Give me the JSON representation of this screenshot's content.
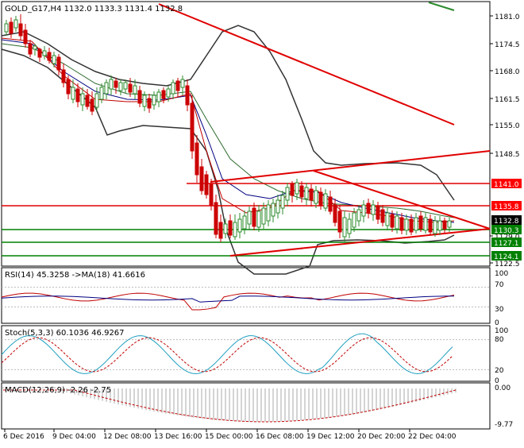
{
  "main": {
    "title": "GOLD_G17,H4 1132.0 1133.3 1131.4 1132.8",
    "price_ticks": [
      "1181.0",
      "1174.5",
      "1168.0",
      "1161.5",
      "1155.0",
      "1148.5",
      "1129.0",
      "1122.5"
    ],
    "price_tags": [
      {
        "text": "1141.0",
        "bg": "#ff0000",
        "fg": "#ffffff"
      },
      {
        "text": "1135.8",
        "bg": "#ff0000",
        "fg": "#ffffff"
      },
      {
        "text": "1132.8",
        "bg": "#000000",
        "fg": "#ffffff"
      },
      {
        "text": "1130.3",
        "bg": "#008000",
        "fg": "#ffffff"
      },
      {
        "text": "1127.1",
        "bg": "#008000",
        "fg": "#ffffff"
      },
      {
        "text": "1124.1",
        "bg": "#008000",
        "fg": "#ffffff"
      }
    ]
  },
  "rsi": {
    "label": "RSI(14) 45.3258 ->MA(18) 41.6616",
    "ticks": [
      "100",
      "70",
      "30",
      "0"
    ]
  },
  "stoch": {
    "label": "Stoch(5,3,3) 60.1036 46.9267",
    "ticks": [
      "100",
      "80",
      "20",
      "0"
    ]
  },
  "macd": {
    "label": "MACD(12,26,9) -2.26 -2.75",
    "ticks": [
      "0.00",
      "-9.77"
    ]
  },
  "time_axis": [
    "6 Dec 2016",
    "9 Dec 04:00",
    "12 Dec 08:00",
    "13 Dec 16:00",
    "15 Dec 00:00",
    "16 Dec 08:00",
    "19 Dec 12:00",
    "20 Dec 20:00",
    "22 Dec 04:00"
  ],
  "colors": {
    "bull": "#2e8b2e",
    "bear": "#cc0000",
    "trend": "#e00000",
    "support": "#008000",
    "band": "#333333"
  }
}
